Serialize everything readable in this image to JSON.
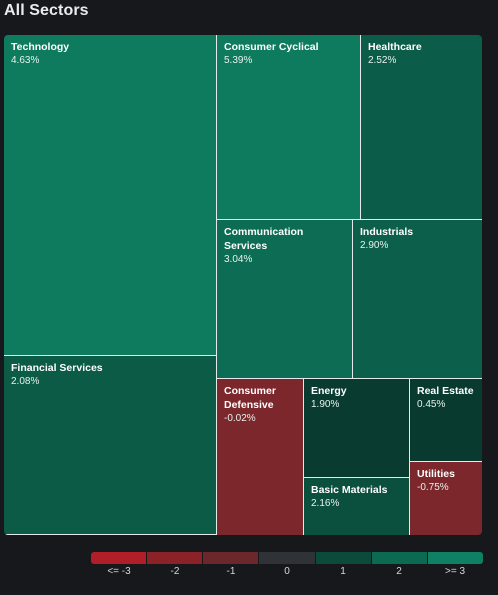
{
  "header": {
    "title": "All Sectors"
  },
  "tiles": [
    {
      "name": "Technology",
      "pct": "4.63%",
      "color": "#0e7a5e"
    },
    {
      "name": "Financial Services",
      "pct": "2.08%",
      "color": "#0b5b47"
    },
    {
      "name": "Consumer Cyclical",
      "pct": "5.39%",
      "color": "#0e7a5e"
    },
    {
      "name": "Healthcare",
      "pct": "2.52%",
      "color": "#0b5c48"
    },
    {
      "name": "Communication Services",
      "pct": "3.04%",
      "color": "#0d6d54"
    },
    {
      "name": "Industrials",
      "pct": "2.90%",
      "color": "#0c604b"
    },
    {
      "name": "Consumer Defensive",
      "pct": "-0.02%",
      "color": "#7b272c"
    },
    {
      "name": "Energy",
      "pct": "1.90%",
      "color": "#0a3b31"
    },
    {
      "name": "Basic Materials",
      "pct": "2.16%",
      "color": "#0b4f3f"
    },
    {
      "name": "Real Estate",
      "pct": "0.45%",
      "color": "#093a30"
    },
    {
      "name": "Utilities",
      "pct": "-0.75%",
      "color": "#7b272c"
    }
  ],
  "legend": {
    "labels": [
      "<= -3",
      "-2",
      "-1",
      "0",
      "1",
      "2",
      ">= 3"
    ],
    "colors": [
      "#b01f28",
      "#8a2228",
      "#6b272b",
      "#2f3236",
      "#0c4a3b",
      "#0c6a53",
      "#108064"
    ]
  }
}
